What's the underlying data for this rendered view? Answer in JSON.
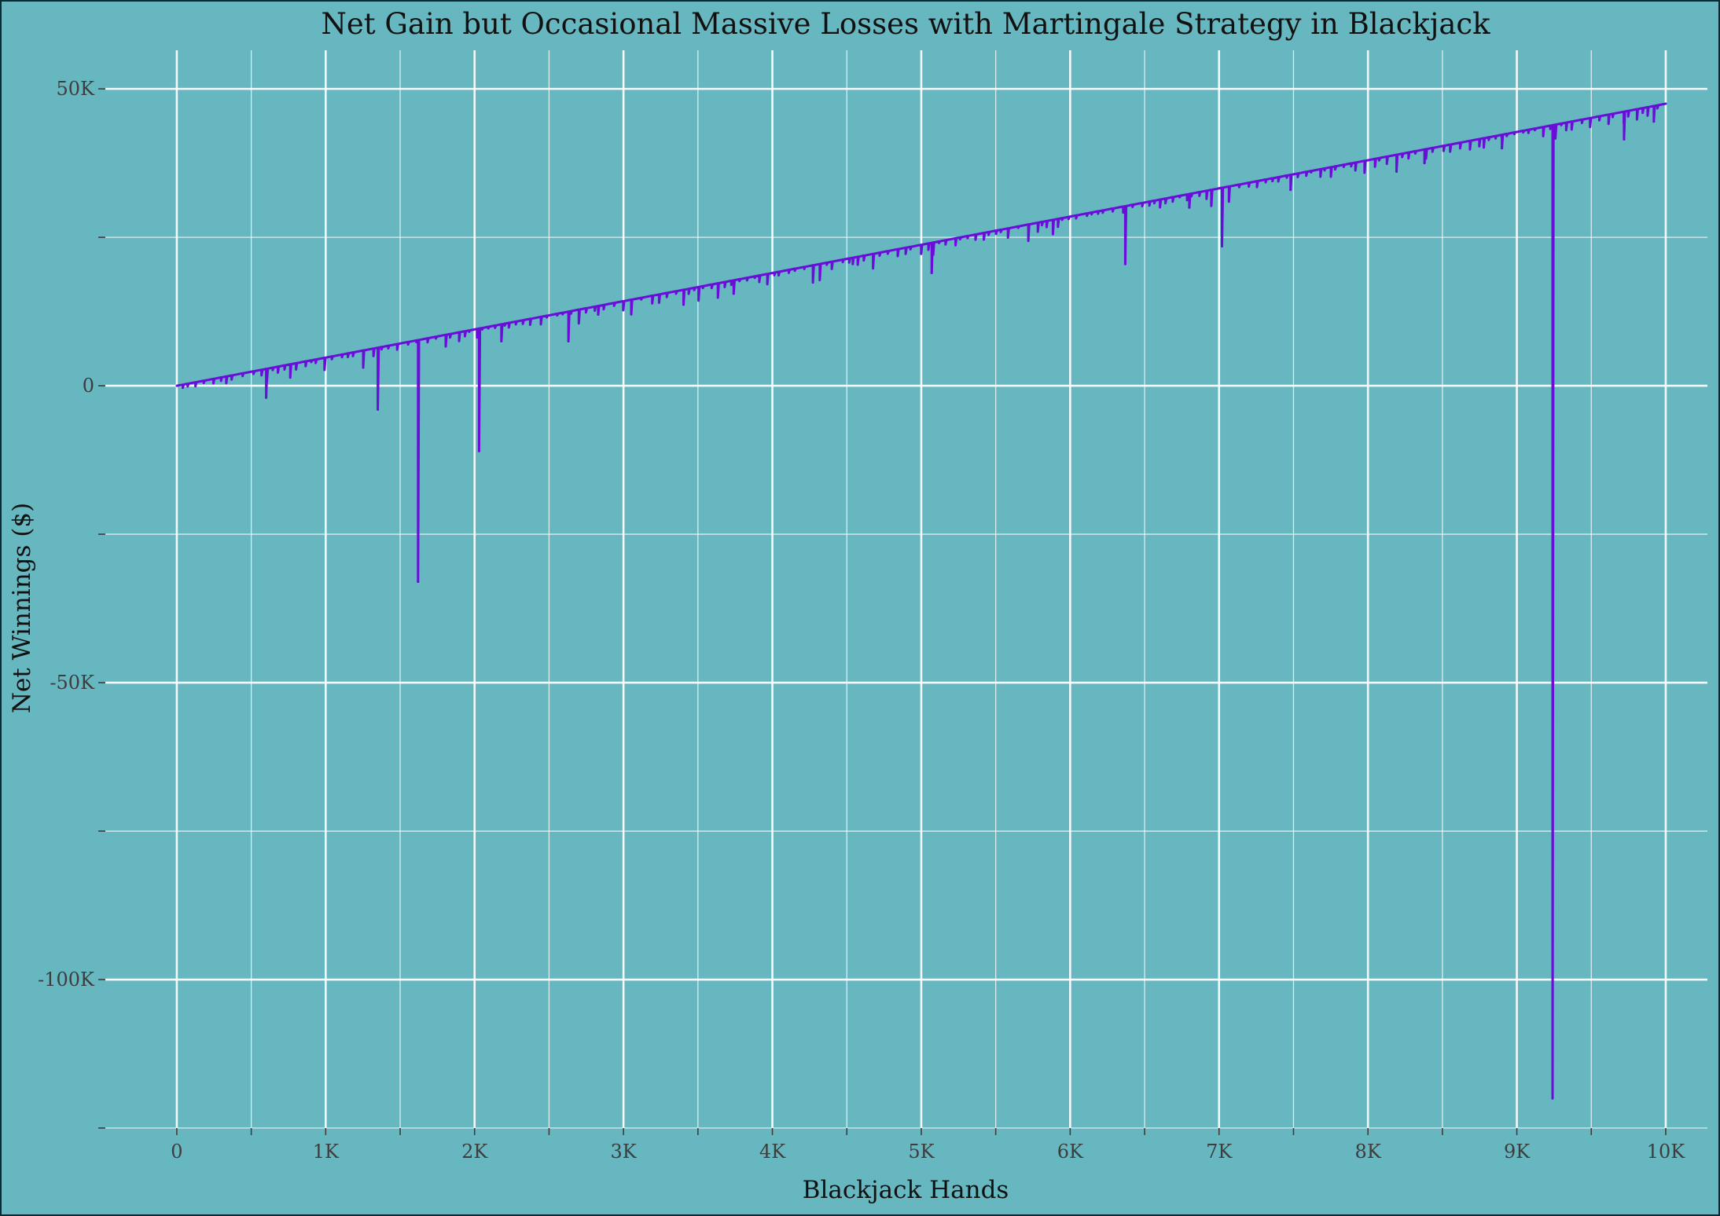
{
  "chart_data": {
    "type": "line",
    "title": "Net Gain but Occasional Massive Losses with Martingale Strategy in Blackjack",
    "xlabel": "Blackjack Hands",
    "ylabel": "Net Winnings ($)",
    "xlim": [
      -480,
      10280
    ],
    "ylim": [
      -125000,
      56500
    ],
    "x_ticks": [
      0,
      1000,
      2000,
      3000,
      4000,
      5000,
      6000,
      7000,
      8000,
      9000,
      10000
    ],
    "x_tick_labels": [
      "0",
      "1K",
      "2K",
      "3K",
      "4K",
      "5K",
      "6K",
      "7K",
      "8K",
      "9K",
      "10K"
    ],
    "y_ticks": [
      50000,
      0,
      -50000,
      -100000
    ],
    "y_tick_labels": [
      "50K",
      "0",
      "-50K",
      "-100K"
    ],
    "x_minor_ticks": [
      500,
      1500,
      2500,
      3500,
      4500,
      5500,
      6500,
      7500,
      8500,
      9500
    ],
    "y_minor_ticks": [
      25000,
      -25000,
      -75000,
      -125000
    ],
    "grid": true,
    "legend": "none",
    "colors": {
      "background": "#67b7c1",
      "line": "#6a0dd9",
      "grid": "#ffffff"
    },
    "series": [
      {
        "trend": {
          "start": [
            0,
            0
          ],
          "end": [
            10000,
            47500
          ]
        },
        "drops": [
          [
            600,
            -2000
          ],
          [
            1350,
            -4000
          ],
          [
            1620,
            -33000
          ],
          [
            2030,
            -11000
          ],
          [
            2180,
            7500
          ],
          [
            2630,
            7500
          ],
          [
            2830,
            12000
          ],
          [
            3740,
            15500
          ],
          [
            4540,
            20500
          ],
          [
            5070,
            19000
          ],
          [
            6370,
            20500
          ],
          [
            6800,
            30000
          ],
          [
            7020,
            23500
          ],
          [
            7480,
            33000
          ],
          [
            8380,
            37500
          ],
          [
            8900,
            40000
          ],
          [
            9240,
            -120000
          ],
          [
            9720,
            41500
          ],
          [
            9920,
            44500
          ]
        ]
      }
    ]
  }
}
